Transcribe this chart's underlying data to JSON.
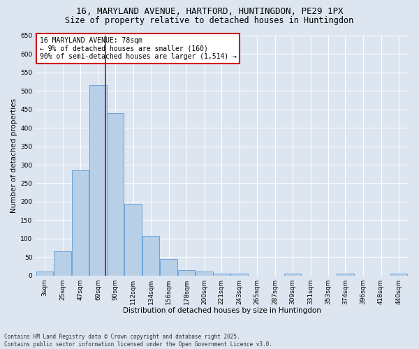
{
  "title_line1": "16, MARYLAND AVENUE, HARTFORD, HUNTINGDON, PE29 1PX",
  "title_line2": "Size of property relative to detached houses in Huntingdon",
  "xlabel": "Distribution of detached houses by size in Huntingdon",
  "ylabel": "Number of detached properties",
  "footnote": "Contains HM Land Registry data © Crown copyright and database right 2025.\nContains public sector information licensed under the Open Government Licence v3.0.",
  "categories": [
    "3sqm",
    "25sqm",
    "47sqm",
    "69sqm",
    "90sqm",
    "112sqm",
    "134sqm",
    "156sqm",
    "178sqm",
    "200sqm",
    "221sqm",
    "243sqm",
    "265sqm",
    "287sqm",
    "309sqm",
    "331sqm",
    "353sqm",
    "374sqm",
    "396sqm",
    "418sqm",
    "440sqm"
  ],
  "heights": [
    10,
    65,
    285,
    515,
    440,
    195,
    107,
    45,
    15,
    10,
    5,
    4,
    0,
    0,
    5,
    0,
    0,
    4,
    0,
    0,
    5
  ],
  "bin_centers": [
    3,
    25,
    47,
    69,
    90,
    112,
    134,
    156,
    178,
    200,
    221,
    243,
    265,
    287,
    309,
    331,
    353,
    374,
    396,
    418,
    440
  ],
  "bin_width": 21,
  "bar_color": "#b8cfe8",
  "bar_edge_color": "#5b9bd5",
  "vline_x": 78,
  "vline_color": "#cc0000",
  "ylim": [
    0,
    650
  ],
  "yticks": [
    0,
    50,
    100,
    150,
    200,
    250,
    300,
    350,
    400,
    450,
    500,
    550,
    600,
    650
  ],
  "annotation_text": "16 MARYLAND AVENUE: 78sqm\n← 9% of detached houses are smaller (160)\n90% of semi-detached houses are larger (1,514) →",
  "annotation_box_color": "#ffffff",
  "annotation_box_edge": "#cc0000",
  "bg_color": "#dde6f0",
  "plot_bg_color": "#dde6f0",
  "grid_color": "#ffffff",
  "title_fontsize": 9,
  "subtitle_fontsize": 8.5,
  "axis_label_fontsize": 7.5,
  "tick_fontsize": 6.5,
  "annotation_fontsize": 7,
  "footnote_fontsize": 5.5
}
